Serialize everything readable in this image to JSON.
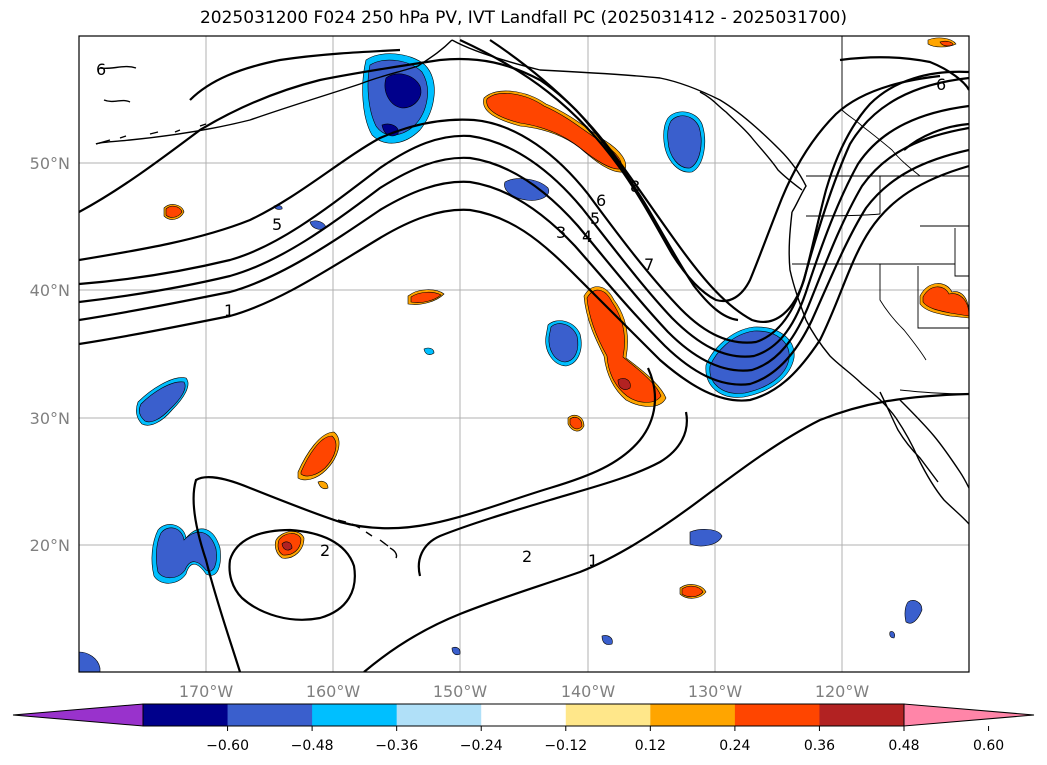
{
  "title": "2025031200 F024 250 hPa PV, IVT Landfall PC (2025031412 - 2025031700)",
  "map": {
    "lon_range": [
      -180,
      -110
    ],
    "lat_range": [
      10,
      60
    ],
    "lat_ticks": [
      {
        "value": 50,
        "label": "50°N"
      },
      {
        "value": 40,
        "label": "40°N"
      },
      {
        "value": 30,
        "label": "30°N"
      },
      {
        "value": 20,
        "label": "20°N"
      }
    ],
    "lon_ticks": [
      {
        "value": -170,
        "label": "170°W"
      },
      {
        "value": -160,
        "label": "160°W"
      },
      {
        "value": -150,
        "label": "150°W"
      },
      {
        "value": -140,
        "label": "140°W"
      },
      {
        "value": -130,
        "label": "130°W"
      },
      {
        "value": -120,
        "label": "120°W"
      }
    ],
    "gridlines": true,
    "contour_labels": [
      "6",
      "6",
      "5",
      "1",
      "3",
      "4",
      "5",
      "6",
      "7",
      "8",
      "2",
      "2",
      "1"
    ]
  },
  "colorbar": {
    "ticks": [
      "−0.60",
      "−0.48",
      "−0.36",
      "−0.24",
      "−0.12",
      "0.12",
      "0.24",
      "0.36",
      "0.48",
      "0.60"
    ],
    "colors": {
      "below": "#9932cc",
      "bins": [
        "#00008b",
        "#3a5fcd",
        "#00bfff",
        "#b0e0f8",
        "#ffffff",
        "#ffe78a",
        "#ffa500",
        "#ff4500",
        "#b22222"
      ],
      "above": "#ff85a8"
    }
  }
}
